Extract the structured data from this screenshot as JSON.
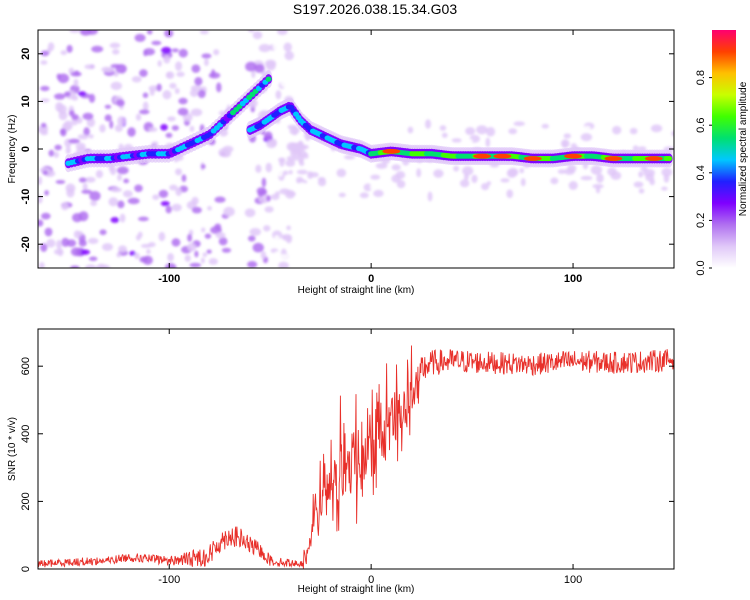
{
  "title": "S197.2026.038.15.34.G03",
  "chart_data": [
    {
      "type": "heatmap",
      "name": "spectrogram",
      "xlabel": "Height of straight line (km)",
      "ylabel": "Frequency (Hz)",
      "xlim": [
        -165,
        150
      ],
      "ylim": [
        -25,
        25
      ],
      "xticks": [
        -100,
        0,
        100
      ],
      "yticks": [
        -20,
        -10,
        0,
        10,
        20
      ],
      "colorbar": {
        "label": "Normalized spectral amplitude",
        "range": [
          0,
          1
        ],
        "ticks": [
          0.0,
          0.2,
          0.4,
          0.6,
          0.8
        ],
        "tick_labels": [
          "0.0",
          "0.2",
          "0.4",
          "0.6",
          "0.8"
        ],
        "colors": [
          "#ffffff",
          "#e0c8f8",
          "#b070f0",
          "#7f00ff",
          "#2020ff",
          "#00c8ff",
          "#00e070",
          "#40ff00",
          "#c8ff00",
          "#ffc000",
          "#ff4000",
          "#ff0070"
        ]
      },
      "ridge_main": {
        "x": [
          -150,
          -140,
          -130,
          -120,
          -110,
          -100,
          -95,
          -90,
          -85,
          -80,
          -75,
          -70,
          -65,
          -60,
          -55,
          -50
        ],
        "y": [
          -3,
          -2,
          -2,
          -1.5,
          -1,
          -1,
          0,
          1,
          2,
          3,
          5,
          7,
          9,
          11,
          13,
          15
        ]
      },
      "ridge_second": {
        "x": [
          -60,
          -55,
          -50,
          -45,
          -40,
          -35,
          -30,
          -25,
          -20,
          -15,
          -10,
          -5,
          0,
          10,
          20,
          30,
          40,
          50,
          60,
          70,
          80,
          90,
          100,
          110,
          120,
          130,
          140,
          148
        ],
        "y": [
          4,
          5,
          6.5,
          8,
          9,
          6,
          4,
          3,
          2,
          1,
          0.5,
          0,
          -1,
          -0.5,
          -1,
          -1,
          -1.5,
          -1.5,
          -1.5,
          -1.5,
          -2,
          -2,
          -1.5,
          -1.5,
          -2,
          -2,
          -2,
          -2
        ]
      },
      "hotspots_x": [
        10,
        55,
        65,
        80,
        100,
        120,
        140
      ]
    },
    {
      "type": "line",
      "name": "snr",
      "xlabel": "Height of straight line (km)",
      "ylabel": "SNR (10 * v/v)",
      "xlim": [
        -165,
        150
      ],
      "ylim": [
        0,
        710
      ],
      "xticks": [
        -100,
        0,
        100
      ],
      "yticks": [
        0,
        200,
        400,
        600
      ],
      "color": "#e8302a",
      "envelope": {
        "x": [
          -165,
          -150,
          -130,
          -120,
          -100,
          -90,
          -80,
          -75,
          -70,
          -65,
          -60,
          -55,
          -50,
          -45,
          -40,
          -35,
          -32,
          -30,
          -28,
          -25,
          -20,
          -15,
          -10,
          -5,
          0,
          5,
          10,
          15,
          20,
          25,
          30,
          40,
          60,
          80,
          100,
          120,
          140,
          150
        ],
        "y": [
          15,
          20,
          25,
          35,
          25,
          30,
          40,
          80,
          100,
          90,
          70,
          55,
          25,
          20,
          18,
          15,
          30,
          70,
          160,
          200,
          240,
          280,
          310,
          340,
          350,
          390,
          420,
          470,
          520,
          590,
          610,
          615,
          610,
          605,
          615,
          610,
          615,
          620
        ]
      },
      "noise": {
        "x": [
          -165,
          -100,
          -80,
          -65,
          -50,
          -35,
          -30,
          -20,
          -10,
          0,
          10,
          20,
          30,
          60,
          150
        ],
        "amp": [
          20,
          25,
          60,
          60,
          30,
          15,
          60,
          120,
          160,
          150,
          150,
          100,
          70,
          60,
          60
        ]
      }
    }
  ]
}
